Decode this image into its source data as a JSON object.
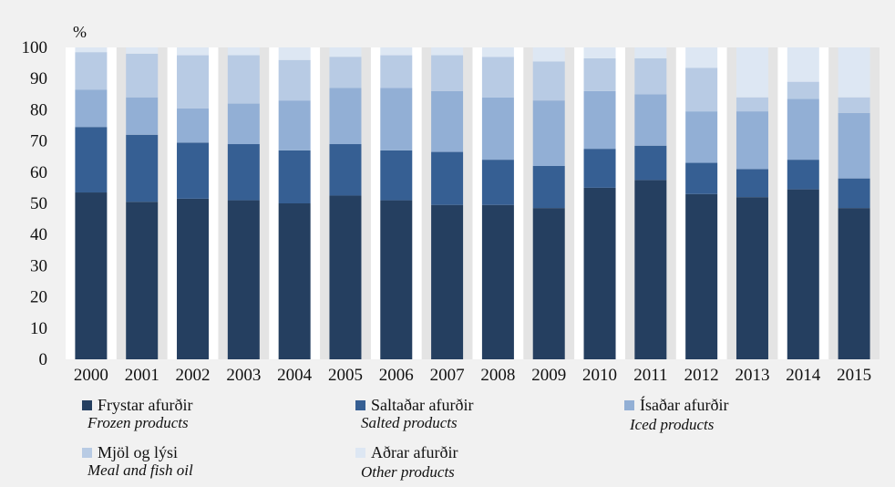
{
  "chart_data": {
    "type": "bar",
    "stacked": true,
    "ylabel": "%",
    "ylim": [
      0,
      100
    ],
    "yticks": [
      0,
      10,
      20,
      30,
      40,
      50,
      60,
      70,
      80,
      90,
      100
    ],
    "grid": false,
    "legend_position": "bottom",
    "categories": [
      "2000",
      "2001",
      "2002",
      "2003",
      "2004",
      "2005",
      "2006",
      "2007",
      "2008",
      "2009",
      "2010",
      "2011",
      "2012",
      "2013",
      "2014",
      "2015"
    ],
    "series": [
      {
        "name": "Frystar afurðir",
        "name_en": "Frozen products",
        "color": "#253f60",
        "values": [
          53.5,
          50.5,
          51.5,
          51.0,
          50.0,
          52.5,
          51.0,
          49.5,
          49.5,
          48.5,
          55.0,
          57.5,
          53.0,
          52.0,
          54.5,
          48.5
        ]
      },
      {
        "name": "Saltaðar afurðir",
        "name_en": "Salted products",
        "color": "#365f93",
        "values": [
          21.0,
          21.5,
          18.0,
          18.0,
          17.0,
          16.5,
          16.0,
          17.0,
          14.5,
          13.5,
          12.5,
          11.0,
          10.0,
          9.0,
          9.5,
          9.5
        ]
      },
      {
        "name": "Ísaðar afurðir",
        "name_en": "Iced products",
        "color": "#92afd5",
        "values": [
          12.0,
          12.0,
          11.0,
          13.0,
          16.0,
          18.0,
          20.0,
          19.5,
          20.0,
          21.0,
          18.5,
          16.5,
          16.5,
          18.5,
          19.5,
          21.0
        ]
      },
      {
        "name": "Mjöl og lýsi",
        "name_en": "Meal and fish oil",
        "color": "#b8cbe4",
        "values": [
          12.0,
          14.0,
          17.0,
          15.5,
          13.0,
          10.0,
          10.5,
          11.5,
          13.0,
          12.5,
          10.5,
          11.5,
          14.0,
          4.5,
          5.5,
          5.0
        ]
      },
      {
        "name": "Aðrar afurðir",
        "name_en": "Other products",
        "color": "#dde7f3",
        "values": [
          1.5,
          2.0,
          2.5,
          2.5,
          4.0,
          3.0,
          2.5,
          2.5,
          3.0,
          4.5,
          3.5,
          3.5,
          6.5,
          16.0,
          11.0,
          16.0
        ]
      }
    ]
  }
}
